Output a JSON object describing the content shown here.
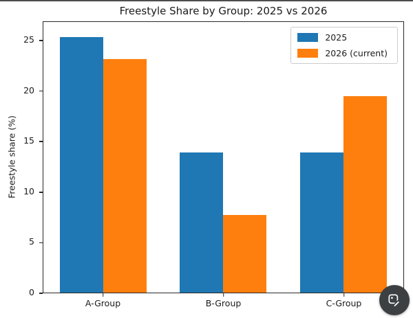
{
  "chart_data": {
    "type": "bar",
    "title": "Freestyle Share by Group: 2025 vs 2026",
    "categories": [
      "A-Group",
      "B-Group",
      "C-Group"
    ],
    "series": [
      {
        "name": "2025",
        "color": "#1f77b4",
        "values": [
          25.4,
          13.9,
          13.9
        ]
      },
      {
        "name": "2026 (current)",
        "color": "#ff7f0e",
        "values": [
          23.2,
          7.7,
          19.5
        ]
      }
    ],
    "xlabel": "",
    "ylabel": "Freestyle share (%)",
    "ylim": [
      0,
      26.9
    ],
    "yticks": [
      0,
      5,
      10,
      15,
      20,
      25
    ],
    "legend_position": "upper right",
    "grid": false,
    "background": "#ffffff",
    "spine_color": "#262626"
  },
  "overlay": {
    "badge": {
      "icon": "image-edit-icon",
      "background": "#3c4043"
    }
  }
}
